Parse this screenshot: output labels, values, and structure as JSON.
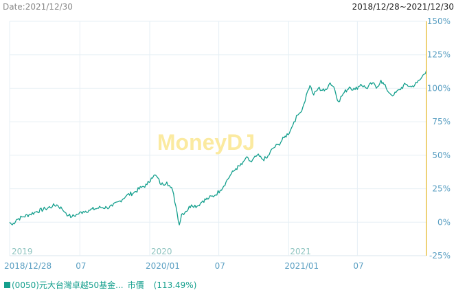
{
  "header": {
    "date_label": "Date:2021/12/30",
    "range_label": "2018/12/28~2021/12/30"
  },
  "watermark": "MoneyDJ",
  "legend": {
    "fund_name": "(0050)元大台灣卓越50基金...",
    "metric": "市價",
    "return_text": "(113.49%)"
  },
  "colors": {
    "line": "#149f8d",
    "axis_right": "#e8c34a",
    "tick_text": "#5a9fc2",
    "grid": "#e6eff5",
    "watermark": "#fbeaa0",
    "year_label": "#8fc4c0"
  },
  "chart_data": {
    "type": "line",
    "title": "",
    "xlabel": "",
    "ylabel": "",
    "ylim": [
      -25,
      150
    ],
    "yticks": [
      "150%",
      "125%",
      "100%",
      "75%",
      "50%",
      "25%",
      "0%",
      "-25%"
    ],
    "y_axis_side": "right",
    "x_tick_labels": [
      "2018/12/28",
      "07",
      "2020/01",
      "07",
      "2021/01",
      "07"
    ],
    "year_labels": [
      "2019",
      "2020",
      "2021"
    ],
    "grid": true,
    "series": [
      {
        "name": "(0050)元大台灣卓越50基金... 市價",
        "points": [
          [
            "2018-12-28",
            0
          ],
          [
            "2019-01-04",
            -2
          ],
          [
            "2019-01-15",
            2
          ],
          [
            "2019-02-01",
            4
          ],
          [
            "2019-02-20",
            6
          ],
          [
            "2019-03-10",
            8
          ],
          [
            "2019-04-01",
            10
          ],
          [
            "2019-04-20",
            12
          ],
          [
            "2019-05-01",
            13
          ],
          [
            "2019-05-15",
            10
          ],
          [
            "2019-05-25",
            7
          ],
          [
            "2019-06-01",
            5
          ],
          [
            "2019-06-10",
            4
          ],
          [
            "2019-06-25",
            6
          ],
          [
            "2019-07-10",
            8
          ],
          [
            "2019-07-25",
            9
          ],
          [
            "2019-08-10",
            10
          ],
          [
            "2019-08-25",
            11
          ],
          [
            "2019-09-10",
            11
          ],
          [
            "2019-09-25",
            12
          ],
          [
            "2019-10-15",
            16
          ],
          [
            "2019-11-01",
            20
          ],
          [
            "2019-11-20",
            22
          ],
          [
            "2019-12-10",
            26
          ],
          [
            "2019-12-25",
            28
          ],
          [
            "2020-01-05",
            33
          ],
          [
            "2020-01-12",
            35
          ],
          [
            "2020-01-20",
            34
          ],
          [
            "2020-01-31",
            28
          ],
          [
            "2020-02-15",
            30
          ],
          [
            "2020-02-25",
            26
          ],
          [
            "2020-03-01",
            24
          ],
          [
            "2020-03-10",
            12
          ],
          [
            "2020-03-19",
            -2
          ],
          [
            "2020-03-25",
            6
          ],
          [
            "2020-04-05",
            8
          ],
          [
            "2020-04-20",
            13
          ],
          [
            "2020-05-05",
            12
          ],
          [
            "2020-05-20",
            16
          ],
          [
            "2020-06-05",
            18
          ],
          [
            "2020-06-20",
            20
          ],
          [
            "2020-07-05",
            24
          ],
          [
            "2020-07-20",
            30
          ],
          [
            "2020-07-31",
            35
          ],
          [
            "2020-08-15",
            40
          ],
          [
            "2020-08-31",
            43
          ],
          [
            "2020-09-10",
            48
          ],
          [
            "2020-09-25",
            45
          ],
          [
            "2020-10-10",
            50
          ],
          [
            "2020-10-25",
            47
          ],
          [
            "2020-11-05",
            48
          ],
          [
            "2020-11-20",
            55
          ],
          [
            "2020-12-05",
            58
          ],
          [
            "2020-12-20",
            63
          ],
          [
            "2021-01-05",
            68
          ],
          [
            "2021-01-15",
            75
          ],
          [
            "2021-01-25",
            80
          ],
          [
            "2021-02-01",
            82
          ],
          [
            "2021-02-10",
            88
          ],
          [
            "2021-02-20",
            98
          ],
          [
            "2021-02-26",
            102
          ],
          [
            "2021-03-08",
            95
          ],
          [
            "2021-03-20",
            100
          ],
          [
            "2021-04-05",
            98
          ],
          [
            "2021-04-20",
            104
          ],
          [
            "2021-04-30",
            101
          ],
          [
            "2021-05-12",
            90
          ],
          [
            "2021-05-25",
            96
          ],
          [
            "2021-06-10",
            101
          ],
          [
            "2021-06-25",
            99
          ],
          [
            "2021-07-10",
            103
          ],
          [
            "2021-07-25",
            100
          ],
          [
            "2021-08-10",
            104
          ],
          [
            "2021-08-20",
            100
          ],
          [
            "2021-09-01",
            106
          ],
          [
            "2021-09-15",
            100
          ],
          [
            "2021-09-25",
            96
          ],
          [
            "2021-10-05",
            95
          ],
          [
            "2021-10-20",
            99
          ],
          [
            "2021-11-05",
            103
          ],
          [
            "2021-11-20",
            101
          ],
          [
            "2021-12-05",
            104
          ],
          [
            "2021-12-15",
            107
          ],
          [
            "2021-12-30",
            113.49
          ]
        ]
      }
    ]
  }
}
